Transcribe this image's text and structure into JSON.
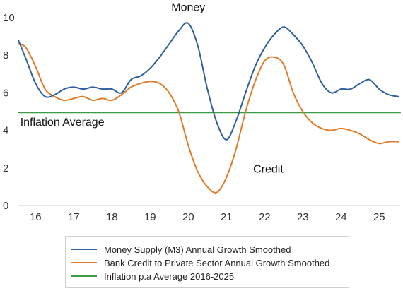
{
  "chart_data": {
    "type": "line",
    "title": "",
    "xlabel": "",
    "ylabel": "",
    "xlim": [
      15.55,
      25.55
    ],
    "ylim": [
      0,
      10
    ],
    "yticks": [
      0,
      2,
      4,
      6,
      8,
      10
    ],
    "xtick_labels": [
      "16",
      "17",
      "18",
      "19",
      "20",
      "21",
      "22",
      "23",
      "24",
      "25"
    ],
    "xtick_values": [
      16,
      17,
      18,
      19,
      20,
      21,
      22,
      23,
      24,
      25
    ],
    "grid": false,
    "legend_position": "bottom",
    "annotations": [
      {
        "text": "Money",
        "x": 20.0,
        "y": 10.35
      },
      {
        "text": "Credit",
        "x": 21.7,
        "y": 1.75
      },
      {
        "text": "Inflation Average",
        "x": 15.6,
        "y": 4.25
      }
    ],
    "series": [
      {
        "name": "Money Supply (M3) Annual Growth Smoothed",
        "color": "#2E5F9E",
        "x": [
          15.55,
          15.75,
          16.0,
          16.25,
          16.5,
          16.75,
          17.0,
          17.25,
          17.5,
          17.75,
          18.0,
          18.25,
          18.5,
          18.75,
          19.0,
          19.25,
          19.5,
          19.75,
          20.0,
          20.25,
          20.5,
          20.75,
          21.0,
          21.25,
          21.5,
          21.75,
          22.0,
          22.25,
          22.5,
          22.75,
          23.0,
          23.25,
          23.5,
          23.75,
          24.0,
          24.25,
          24.5,
          24.75,
          25.0,
          25.25,
          25.5
        ],
        "y": [
          8.8,
          7.8,
          6.5,
          5.8,
          5.9,
          6.2,
          6.3,
          6.2,
          6.3,
          6.2,
          6.2,
          6.0,
          6.7,
          6.9,
          7.3,
          7.9,
          8.6,
          9.3,
          9.7,
          8.5,
          6.2,
          4.4,
          3.5,
          4.5,
          6.0,
          7.4,
          8.4,
          9.1,
          9.5,
          9.1,
          8.5,
          7.6,
          6.5,
          6.0,
          6.2,
          6.2,
          6.5,
          6.7,
          6.2,
          5.9,
          5.8
        ]
      },
      {
        "name": "Bank Credit to Private Sector Annual Growth Smoothed",
        "color": "#E07B2A",
        "x": [
          15.55,
          15.75,
          16.0,
          16.25,
          16.5,
          16.75,
          17.0,
          17.25,
          17.5,
          17.75,
          18.0,
          18.25,
          18.5,
          18.75,
          19.0,
          19.25,
          19.5,
          19.75,
          20.0,
          20.25,
          20.5,
          20.75,
          21.0,
          21.25,
          21.5,
          21.75,
          22.0,
          22.25,
          22.5,
          22.75,
          23.0,
          23.25,
          23.5,
          23.75,
          24.0,
          24.25,
          24.5,
          24.75,
          25.0,
          25.25,
          25.5
        ],
        "y": [
          8.6,
          8.4,
          7.4,
          6.2,
          5.8,
          5.6,
          5.7,
          5.8,
          5.6,
          5.7,
          5.6,
          5.9,
          6.3,
          6.5,
          6.6,
          6.5,
          6.0,
          5.0,
          3.2,
          1.8,
          1.0,
          0.7,
          1.5,
          3.0,
          5.0,
          6.6,
          7.7,
          7.9,
          7.5,
          6.0,
          5.0,
          4.4,
          4.1,
          4.0,
          4.1,
          4.0,
          3.8,
          3.5,
          3.3,
          3.4,
          3.4
        ]
      },
      {
        "name": "Inflation p.a Average 2016-2025",
        "color": "#3A9A45",
        "x": [
          15.55,
          25.55
        ],
        "y": [
          4.95,
          4.95
        ]
      }
    ]
  }
}
